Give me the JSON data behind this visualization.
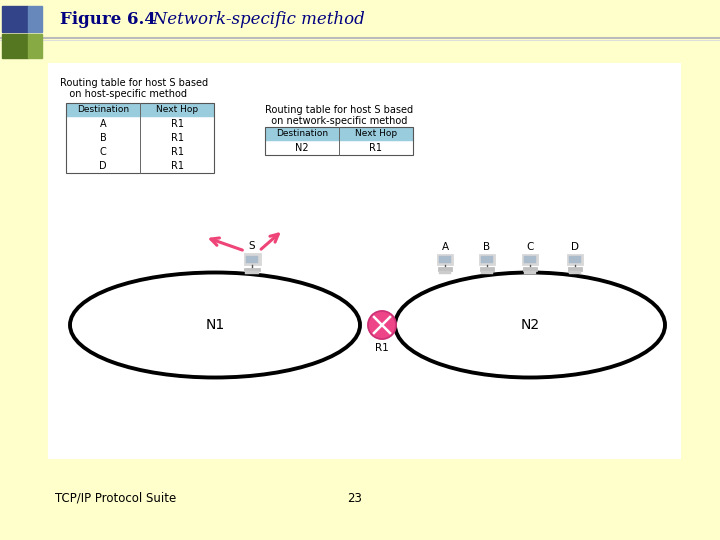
{
  "bg_color": "#ffffcc",
  "slide_bg": "#ffffff",
  "title_bold": "Figure 6.4",
  "title_italic": "   Network-specific method",
  "title_color": "#000080",
  "footer_left": "TCP/IP Protocol Suite",
  "footer_center": "23",
  "footer_color": "#000000",
  "table1_title_line1": "Routing table for host S based",
  "table1_title_line2": "   on host-specific method",
  "table2_title_line1": "Routing table for host S based",
  "table2_title_line2": "  on network-specific method",
  "table1_rows": [
    [
      "A",
      "R1"
    ],
    [
      "B",
      "R1"
    ],
    [
      "C",
      "R1"
    ],
    [
      "D",
      "R1"
    ]
  ],
  "table2_rows": [
    [
      "N2",
      "R1"
    ]
  ],
  "table_header_color": "#99ccdd",
  "net1_label": "N1",
  "net2_label": "N2",
  "router_label": "R1",
  "host_s_label": "S",
  "host_labels": [
    "A",
    "B",
    "C",
    "D"
  ],
  "arrow_color": "#ee4477",
  "router_color": "#ee4488",
  "deco_tl_color": "#334488",
  "deco_bl_color": "#557722",
  "deco_tr_color": "#6688bb",
  "deco_br_color": "#88aa44"
}
